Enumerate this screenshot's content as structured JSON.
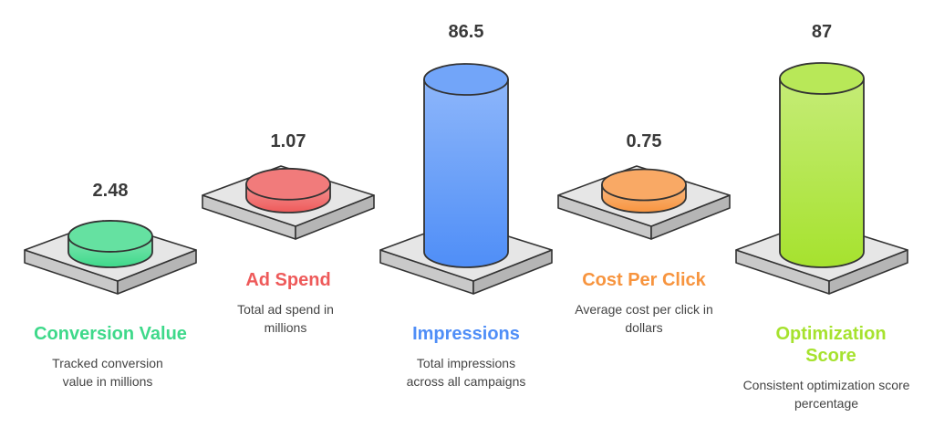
{
  "chart_data": {
    "type": "bar",
    "style": "3d-cylinders-on-pedestals",
    "categories": [
      "Conversion Value",
      "Ad Spend",
      "Impressions",
      "Cost Per Click",
      "Optimization Score"
    ],
    "values": [
      2.48,
      1.07,
      86.5,
      0.75,
      87
    ],
    "value_labels": [
      "2.48",
      "1.07",
      "86.5",
      "0.75",
      "87"
    ],
    "descriptions": [
      "Tracked conversion value in millions",
      "Total ad spend in millions",
      "Total impressions across all campaigns",
      "Average cost per click in dollars",
      "Consistent optimization score percentage"
    ],
    "colors": [
      "#3ED98A",
      "#EE5A5A",
      "#4F8EF7",
      "#F7943E",
      "#A6E22E"
    ],
    "title": "",
    "xlabel": "",
    "ylabel": ""
  }
}
